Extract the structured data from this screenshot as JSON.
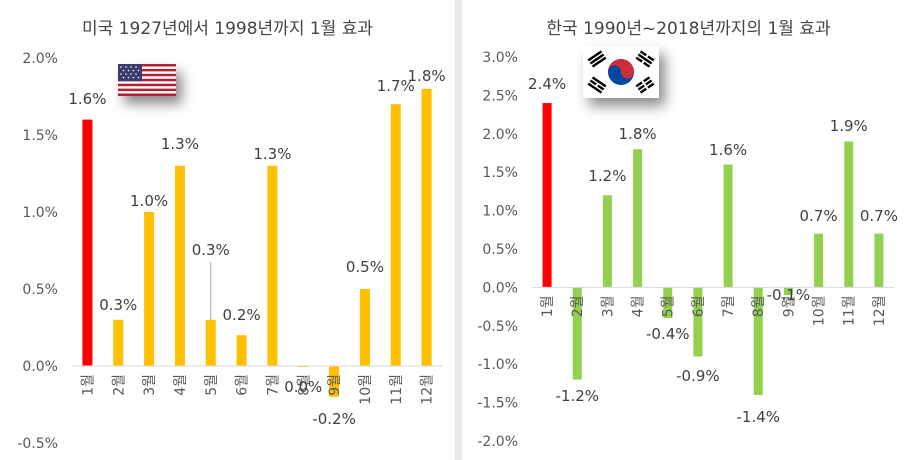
{
  "chart_data": [
    {
      "type": "bar",
      "title": "미국 1927년에서 1998년까지 1월 효과",
      "categories": [
        "1월",
        "2월",
        "3월",
        "4월",
        "5월",
        "6월",
        "7월",
        "8월",
        "9월",
        "10월",
        "11월",
        "12월"
      ],
      "values": [
        1.6,
        0.3,
        1.0,
        1.3,
        0.3,
        0.2,
        1.3,
        0.0,
        -0.2,
        0.5,
        1.7,
        1.8
      ],
      "data_labels": [
        "1.6%",
        "0.3%",
        "1.0%",
        "1.3%",
        "0.3%",
        "0.2%",
        "1.3%",
        "0.0%",
        "-0.2%",
        "0.5%",
        "1.7%",
        "1.8%"
      ],
      "ylim": [
        -0.5,
        2.0
      ],
      "yticks": [
        -0.5,
        0.0,
        0.5,
        1.0,
        1.5,
        2.0
      ],
      "ytick_labels": [
        "-0.5%",
        "0.0%",
        "0.5%",
        "1.0%",
        "1.5%",
        "2.0%"
      ],
      "grid": false,
      "colors": {
        "highlight": "#ff0000",
        "bar": "#ffc000"
      }
    },
    {
      "type": "bar",
      "title": "한국 1990년~2018년까지의 1월 효과",
      "categories": [
        "1월",
        "2월",
        "3월",
        "4월",
        "5월",
        "6월",
        "7월",
        "8월",
        "9월",
        "10월",
        "11월",
        "12월"
      ],
      "values": [
        2.4,
        -1.2,
        1.2,
        1.8,
        -0.4,
        -0.9,
        1.6,
        -1.4,
        -0.1,
        0.7,
        1.9,
        0.7
      ],
      "data_labels": [
        "2.4%",
        "-1.2%",
        "1.2%",
        "1.8%",
        "-0.4%",
        "-0.9%",
        "1.6%",
        "-1.4%",
        "-0.1%",
        "0.7%",
        "1.9%",
        "0.7%"
      ],
      "ylim": [
        -2.0,
        3.0
      ],
      "yticks": [
        -2.0,
        -1.5,
        -1.0,
        -0.5,
        0.0,
        0.5,
        1.0,
        1.5,
        2.0,
        2.5,
        3.0
      ],
      "ytick_labels": [
        "-2.0%",
        "-1.5%",
        "-1.0%",
        "-0.5%",
        "0.0%",
        "0.5%",
        "1.0%",
        "1.5%",
        "2.0%",
        "2.5%",
        "3.0%"
      ],
      "grid": false,
      "colors": {
        "highlight": "#ff0000",
        "bar": "#92d050"
      }
    }
  ],
  "flags": [
    {
      "icon": "us-flag-icon"
    },
    {
      "icon": "korea-flag-icon"
    }
  ]
}
